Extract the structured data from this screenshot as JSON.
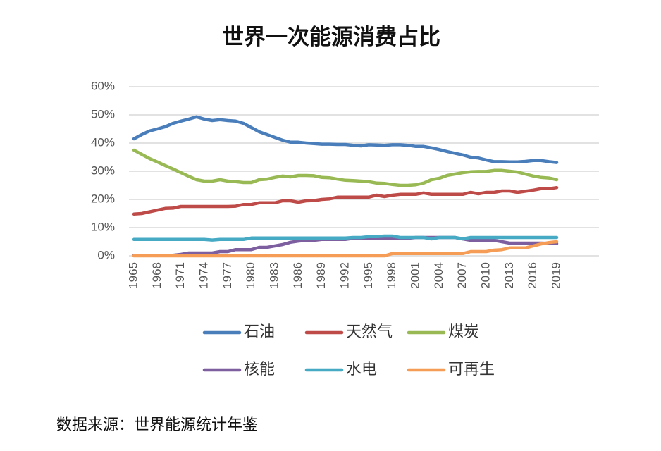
{
  "chart_data": {
    "type": "line",
    "title": "世界一次能源消费占比",
    "source": "数据来源：世界能源统计年鉴",
    "x": [
      1965,
      1966,
      1967,
      1968,
      1969,
      1970,
      1971,
      1972,
      1973,
      1974,
      1975,
      1976,
      1977,
      1978,
      1979,
      1980,
      1981,
      1982,
      1983,
      1984,
      1985,
      1986,
      1987,
      1988,
      1989,
      1990,
      1991,
      1992,
      1993,
      1994,
      1995,
      1996,
      1997,
      1998,
      1999,
      2000,
      2001,
      2002,
      2003,
      2004,
      2005,
      2006,
      2007,
      2008,
      2009,
      2010,
      2011,
      2012,
      2013,
      2014,
      2015,
      2016,
      2017,
      2018,
      2019
    ],
    "xlim": [
      1965,
      2019
    ],
    "xticks": [
      1965,
      1968,
      1971,
      1974,
      1977,
      1980,
      1983,
      1986,
      1989,
      1992,
      1995,
      1998,
      2001,
      2004,
      2007,
      2010,
      2013,
      2016,
      2019
    ],
    "ylim": [
      0,
      60
    ],
    "yticks": [
      {
        "value": 0,
        "label": "0%"
      },
      {
        "value": 10,
        "label": "10%"
      },
      {
        "value": 20,
        "label": "20%"
      },
      {
        "value": 30,
        "label": "30%"
      },
      {
        "value": 40,
        "label": "40%"
      },
      {
        "value": 50,
        "label": "50%"
      },
      {
        "value": 60,
        "label": "60%"
      }
    ],
    "grid": true,
    "legend": "bottom",
    "series": [
      {
        "name": "石油",
        "color": "#4a7ebb",
        "values": [
          41.5,
          43,
          44.3,
          45,
          45.8,
          47,
          47.8,
          48.5,
          49.3,
          48.5,
          48,
          48.3,
          48,
          47.8,
          47,
          45.5,
          44,
          43,
          42,
          41,
          40.3,
          40.3,
          40,
          39.8,
          39.6,
          39.6,
          39.5,
          39.5,
          39.2,
          39,
          39.4,
          39.3,
          39.2,
          39.4,
          39.4,
          39.2,
          38.8,
          38.8,
          38.3,
          37.7,
          37,
          36.4,
          35.8,
          35,
          34.7,
          34,
          33.4,
          33.4,
          33.3,
          33.3,
          33.5,
          33.8,
          33.8,
          33.4,
          33.1
        ]
      },
      {
        "name": "天然气",
        "color": "#be4b48",
        "values": [
          14.8,
          15,
          15.6,
          16.2,
          16.8,
          16.9,
          17.5,
          17.5,
          17.5,
          17.5,
          17.5,
          17.5,
          17.5,
          17.6,
          18.2,
          18.2,
          18.8,
          18.8,
          18.8,
          19.5,
          19.5,
          19,
          19.5,
          19.6,
          20,
          20.2,
          20.8,
          20.8,
          20.8,
          20.8,
          20.8,
          21.5,
          21,
          21.5,
          21.8,
          21.8,
          21.8,
          22.3,
          21.8,
          21.8,
          21.8,
          21.8,
          21.8,
          22.5,
          22,
          22.5,
          22.5,
          23,
          23,
          22.5,
          22.9,
          23.3,
          23.8,
          23.8,
          24.2
        ]
      },
      {
        "name": "煤炭",
        "color": "#98b954",
        "values": [
          37.5,
          36,
          34.5,
          33.3,
          32,
          30.8,
          29.5,
          28.2,
          27,
          26.5,
          26.5,
          27,
          26.5,
          26.3,
          26,
          26,
          27,
          27.2,
          27.8,
          28.3,
          28,
          28.5,
          28.5,
          28.4,
          27.8,
          27.7,
          27.2,
          26.8,
          26.7,
          26.5,
          26.3,
          25.8,
          25.7,
          25.3,
          25,
          25,
          25.2,
          25.8,
          27,
          27.5,
          28.5,
          29,
          29.5,
          29.8,
          29.9,
          29.9,
          30.3,
          30.3,
          30,
          29.7,
          29,
          28.3,
          27.8,
          27.6,
          27
        ]
      },
      {
        "name": "核能",
        "color": "#7d5fa0",
        "values": [
          0.2,
          0.2,
          0.2,
          0.2,
          0.2,
          0.2,
          0.5,
          1,
          1,
          1,
          1,
          1.5,
          1.5,
          2.2,
          2.2,
          2.2,
          3,
          3,
          3.5,
          4,
          4.8,
          5.2,
          5.5,
          5.5,
          5.8,
          5.8,
          5.8,
          5.8,
          6.2,
          6.2,
          6.2,
          6.2,
          6.2,
          6.2,
          6.2,
          6.2,
          6.5,
          6.5,
          6.5,
          6.5,
          6.5,
          6.5,
          6,
          5.5,
          5.5,
          5.5,
          5.5,
          5,
          4.5,
          4.5,
          4.5,
          4.5,
          4.5,
          4.4,
          4.3
        ]
      },
      {
        "name": "水电",
        "color": "#46aac5",
        "values": [
          5.8,
          5.8,
          5.8,
          5.8,
          5.8,
          5.8,
          5.8,
          5.8,
          5.8,
          5.8,
          5.6,
          5.8,
          5.8,
          5.8,
          5.8,
          6.3,
          6.3,
          6.3,
          6.3,
          6.3,
          6.3,
          6.3,
          6.3,
          6.3,
          6.3,
          6.3,
          6.3,
          6.3,
          6.5,
          6.5,
          6.8,
          6.8,
          7,
          7,
          6.5,
          6.5,
          6.5,
          6.5,
          6,
          6.5,
          6.5,
          6.5,
          6,
          6.5,
          6.5,
          6.5,
          6.5,
          6.5,
          6.5,
          6.5,
          6.5,
          6.5,
          6.5,
          6.5,
          6.5
        ]
      },
      {
        "name": "可再生",
        "color": "#f59d56",
        "values": [
          0,
          0,
          0,
          0,
          0,
          0,
          0,
          0,
          0,
          0,
          0,
          0,
          0,
          0,
          0,
          0,
          0,
          0,
          0,
          0,
          0,
          0,
          0,
          0,
          0,
          0,
          0,
          0,
          0,
          0,
          0,
          0,
          0,
          0.8,
          0.8,
          0.8,
          0.8,
          0.8,
          0.8,
          0.8,
          0.8,
          0.8,
          0.8,
          1.5,
          1.5,
          1.5,
          2,
          2.2,
          2.8,
          2.8,
          2.8,
          3.5,
          4.2,
          4.7,
          5
        ]
      }
    ]
  }
}
